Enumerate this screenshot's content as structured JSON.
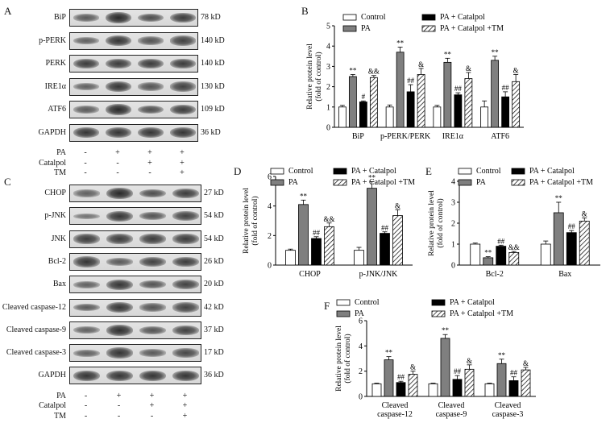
{
  "panels": {
    "A": "A",
    "B": "B",
    "C": "C",
    "D": "D",
    "E": "E",
    "F": "F"
  },
  "blots_A": {
    "rows": [
      {
        "label": "BiP",
        "kd": "78 kD",
        "intensity": [
          0.55,
          0.95,
          0.65,
          0.8
        ]
      },
      {
        "label": "p-PERK",
        "kd": "140 kD",
        "intensity": [
          0.5,
          0.85,
          0.6,
          0.75
        ]
      },
      {
        "label": "PERK",
        "kd": "140 kD",
        "intensity": [
          0.8,
          0.8,
          0.8,
          0.8
        ]
      },
      {
        "label": "IRE1α",
        "kd": "130 kD",
        "intensity": [
          0.5,
          0.85,
          0.6,
          0.75
        ]
      },
      {
        "label": "ATF6",
        "kd": "109  kD",
        "intensity": [
          0.55,
          0.95,
          0.65,
          0.8
        ]
      },
      {
        "label": "GAPDH",
        "kd": "36 kD",
        "intensity": [
          0.85,
          0.85,
          0.85,
          0.85
        ]
      }
    ],
    "treatments": [
      {
        "name": "PA",
        "signs": [
          "-",
          "+",
          "+",
          "+"
        ]
      },
      {
        "name": "Catalpol",
        "signs": [
          "-",
          "-",
          "+",
          "+"
        ]
      },
      {
        "name": "TM",
        "signs": [
          "-",
          "-",
          "-",
          "+"
        ]
      }
    ]
  },
  "blots_C": {
    "rows": [
      {
        "label": "CHOP",
        "kd": "27 kD",
        "intensity": [
          0.5,
          0.95,
          0.65,
          0.8
        ]
      },
      {
        "label": "p-JNK",
        "kd": "54 kD",
        "intensity": [
          0.35,
          0.85,
          0.6,
          0.75
        ]
      },
      {
        "label": "JNK",
        "kd": "54 kD",
        "intensity": [
          0.8,
          0.8,
          0.8,
          0.8
        ]
      },
      {
        "label": "Bcl-2",
        "kd": "26 kD",
        "intensity": [
          0.85,
          0.55,
          0.75,
          0.8
        ]
      },
      {
        "label": "Bax",
        "kd": "20 kD",
        "intensity": [
          0.5,
          0.85,
          0.6,
          0.75
        ]
      },
      {
        "label": "Cleaved caspase-12",
        "kd": "42 kD",
        "intensity": [
          0.55,
          0.85,
          0.6,
          0.75
        ]
      },
      {
        "label": "Cleaved caspase-9",
        "kd": "37 kD",
        "intensity": [
          0.5,
          0.9,
          0.6,
          0.75
        ]
      },
      {
        "label": "Cleaved caspase-3",
        "kd": "17 kD",
        "intensity": [
          0.5,
          0.85,
          0.55,
          0.7
        ]
      },
      {
        "label": "GAPDH",
        "kd": "36 kD",
        "intensity": [
          0.85,
          0.85,
          0.85,
          0.85
        ]
      }
    ],
    "treatments": [
      {
        "name": "PA",
        "signs": [
          "-",
          "+",
          "+",
          "+"
        ]
      },
      {
        "name": "Catalpol",
        "signs": [
          "-",
          "-",
          "+",
          "+"
        ]
      },
      {
        "name": "TM",
        "signs": [
          "-",
          "-",
          "-",
          "+"
        ]
      }
    ]
  },
  "legend": [
    "Control",
    "PA",
    "PA + Catalpol",
    "PA + Catalpol +TM"
  ],
  "colors": {
    "Control": "#ffffff",
    "PA": "#7f7f7f",
    "PA + Catalpol": "#000000",
    "PA + Catalpol +TM": "hatch"
  },
  "chart_data": [
    {
      "panel": "B",
      "type": "bar",
      "ylabel": "Relative protein level\n(fold of control)",
      "ylim": [
        0,
        5
      ],
      "yticks": [
        0,
        1,
        2,
        3,
        4,
        5
      ],
      "categories": [
        "BiP",
        "p-PERK/PERK",
        "IRE1α",
        "ATF6"
      ],
      "series": [
        {
          "name": "Control",
          "values": [
            1.0,
            1.0,
            1.0,
            1.0
          ],
          "errors": [
            0.08,
            0.1,
            0.08,
            0.3
          ]
        },
        {
          "name": "PA",
          "values": [
            2.5,
            3.7,
            3.2,
            3.3
          ],
          "errors": [
            0.1,
            0.25,
            0.2,
            0.2
          ]
        },
        {
          "name": "PA + Catalpol",
          "values": [
            1.25,
            1.75,
            1.6,
            1.5
          ],
          "errors": [
            0.05,
            0.35,
            0.1,
            0.25
          ]
        },
        {
          "name": "PA + Catalpol +TM",
          "values": [
            2.45,
            2.6,
            2.4,
            2.25
          ],
          "errors": [
            0.1,
            0.3,
            0.3,
            0.35
          ]
        }
      ],
      "annotations": [
        [
          "",
          "**",
          "#",
          "&&"
        ],
        [
          "",
          "**",
          "##",
          "&"
        ],
        [
          "",
          "**",
          "##",
          "&"
        ],
        [
          "",
          "**",
          "##",
          "&"
        ]
      ]
    },
    {
      "panel": "D",
      "type": "bar",
      "ylabel": "Relative protein level\n(fold of control)",
      "ylim": [
        0,
        6
      ],
      "yticks": [
        0,
        2,
        4,
        6
      ],
      "categories": [
        "CHOP",
        "p-JNK/JNK"
      ],
      "series": [
        {
          "name": "Control",
          "values": [
            1.0,
            1.0
          ],
          "errors": [
            0.08,
            0.2
          ]
        },
        {
          "name": "PA",
          "values": [
            4.1,
            5.2
          ],
          "errors": [
            0.3,
            0.45
          ]
        },
        {
          "name": "PA + Catalpol",
          "values": [
            1.8,
            2.15
          ],
          "errors": [
            0.12,
            0.1
          ]
        },
        {
          "name": "PA + Catalpol +TM",
          "values": [
            2.6,
            3.35
          ],
          "errors": [
            0.25,
            0.4
          ]
        }
      ],
      "annotations": [
        [
          "",
          "**",
          "##",
          "&&"
        ],
        [
          "",
          "**",
          "##",
          "&"
        ]
      ]
    },
    {
      "panel": "E",
      "type": "bar",
      "ylabel": "Relative protein level\n(fold of control)",
      "ylim": [
        0,
        4
      ],
      "yticks": [
        0,
        1,
        2,
        3,
        4
      ],
      "categories": [
        "Bcl-2",
        "Bax"
      ],
      "series": [
        {
          "name": "Control",
          "values": [
            1.0,
            1.0
          ],
          "errors": [
            0.05,
            0.15
          ]
        },
        {
          "name": "PA",
          "values": [
            0.35,
            2.5
          ],
          "errors": [
            0.05,
            0.5
          ]
        },
        {
          "name": "PA + Catalpol",
          "values": [
            0.9,
            1.55
          ],
          "errors": [
            0.05,
            0.1
          ]
        },
        {
          "name": "PA + Catalpol +TM",
          "values": [
            0.6,
            2.1
          ],
          "errors": [
            0.05,
            0.15
          ]
        }
      ],
      "annotations": [
        [
          "",
          "**",
          "##",
          "&&"
        ],
        [
          "",
          "**",
          "##",
          "&"
        ]
      ]
    },
    {
      "panel": "F",
      "type": "bar",
      "ylabel": "Relative protein level\n(fold of control)",
      "ylim": [
        0,
        6
      ],
      "yticks": [
        0,
        2,
        4,
        6
      ],
      "categories": [
        "Cleaved\ncaspase-12",
        "Cleaved\ncaspase-9",
        "Cleaved\ncaspase-3"
      ],
      "series": [
        {
          "name": "Control",
          "values": [
            1.0,
            1.0,
            1.0
          ],
          "errors": [
            0.05,
            0.05,
            0.05
          ]
        },
        {
          "name": "PA",
          "values": [
            2.9,
            4.6,
            2.6
          ],
          "errors": [
            0.25,
            0.3,
            0.35
          ]
        },
        {
          "name": "PA + Catalpol",
          "values": [
            1.1,
            1.35,
            1.25
          ],
          "errors": [
            0.1,
            0.3,
            0.3
          ]
        },
        {
          "name": "PA + Catalpol +TM",
          "values": [
            1.75,
            2.15,
            2.1
          ],
          "errors": [
            0.25,
            0.35,
            0.2
          ]
        }
      ],
      "annotations": [
        [
          "",
          "**",
          "##",
          "&"
        ],
        [
          "",
          "**",
          "##",
          "&"
        ],
        [
          "",
          "**",
          "##",
          "&"
        ]
      ]
    }
  ]
}
